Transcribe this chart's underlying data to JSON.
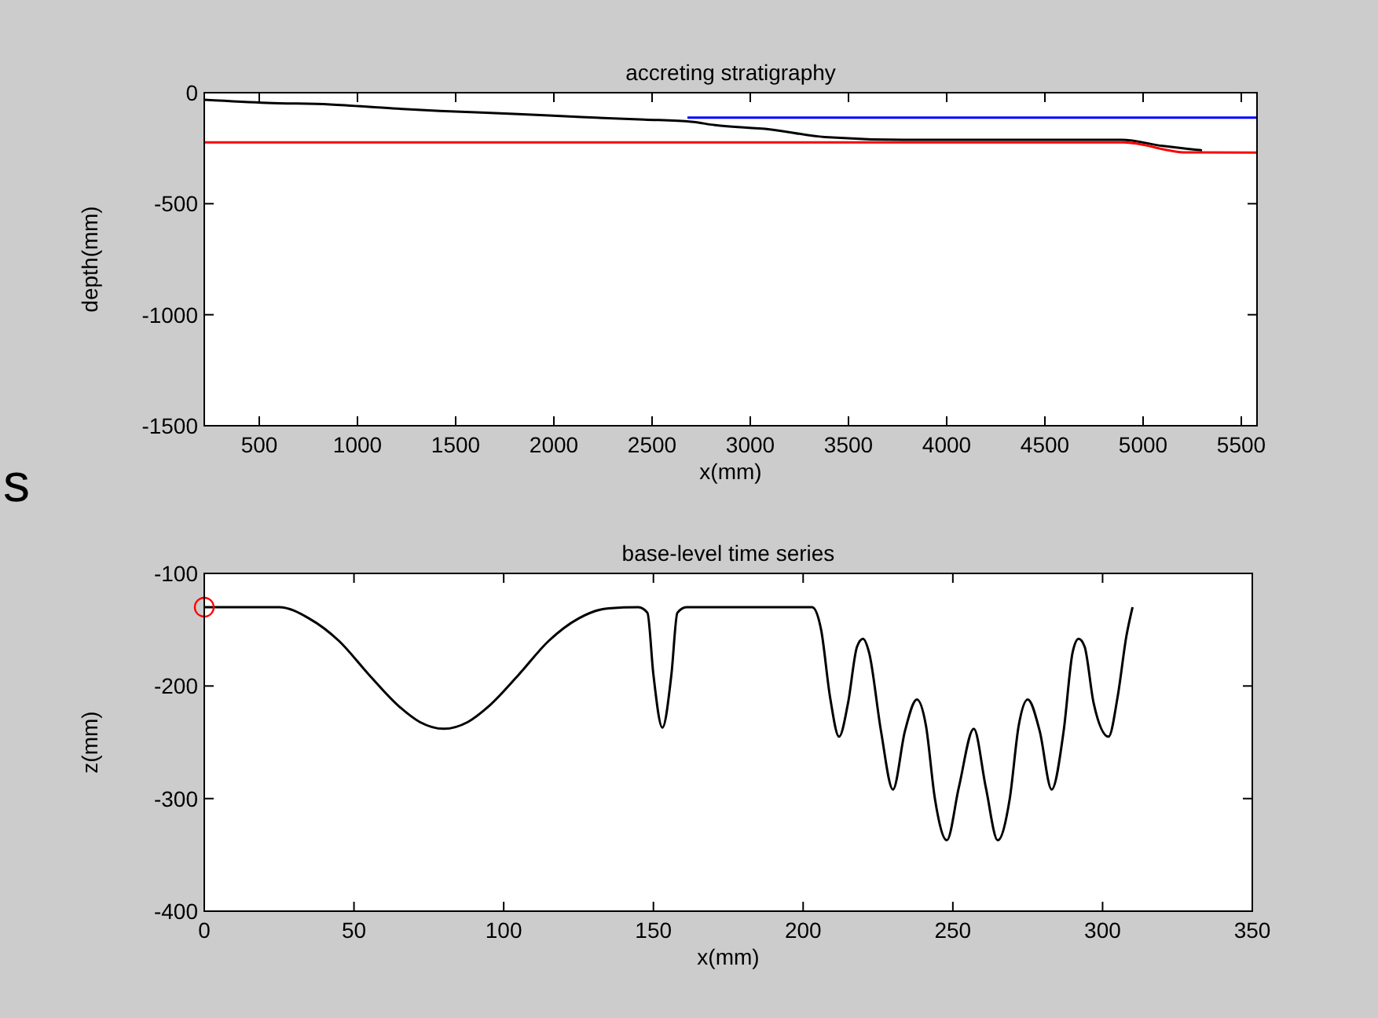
{
  "chart_data": [
    {
      "type": "line",
      "title": "accreting stratigraphy",
      "xlabel": "x(mm)",
      "ylabel": "depth(mm)",
      "xlim": [
        220,
        5580
      ],
      "ylim": [
        -1500,
        0
      ],
      "xticks": [
        500,
        1000,
        1500,
        2000,
        2500,
        3000,
        3500,
        4000,
        4500,
        5000,
        5500
      ],
      "yticks": [
        -1500,
        -1000,
        -500,
        0
      ],
      "annotations": [
        "s"
      ],
      "series": [
        {
          "color": "#000000",
          "x": [
            220,
            540,
            860,
            1180,
            1420,
            1820,
            2140,
            2460,
            2700,
            2820,
            3100,
            3380,
            3780,
            4890,
            5100,
            5300
          ],
          "values": [
            -32,
            -46,
            -53,
            -71,
            -82,
            -96,
            -110,
            -121,
            -131,
            -146,
            -165,
            -200,
            -212,
            -212,
            -240,
            -260
          ]
        },
        {
          "color": "#0000ff",
          "x": [
            2680,
            5580
          ],
          "values": [
            -112,
            -112
          ]
        },
        {
          "color": "#ff0000",
          "x": [
            220,
            4900,
            5220,
            5580
          ],
          "values": [
            -224,
            -224,
            -269,
            -270
          ]
        }
      ]
    },
    {
      "type": "line",
      "title": "base-level time series",
      "xlabel": "x(mm)",
      "ylabel": "z(mm)",
      "xlim": [
        0,
        350
      ],
      "ylim": [
        -400,
        -100
      ],
      "xticks": [
        0,
        50,
        100,
        150,
        200,
        250,
        300,
        350
      ],
      "yticks": [
        -400,
        -300,
        -200,
        -100
      ],
      "series": [
        {
          "color": "#000000",
          "x": [
            0,
            25,
            35,
            45,
            55,
            65,
            72,
            80,
            88,
            95,
            105,
            115,
            125,
            135,
            145,
            148,
            150,
            153,
            156,
            158,
            161,
            203,
            206,
            209,
            212,
            215,
            218,
            220,
            222,
            226,
            230,
            234,
            238,
            241,
            244,
            248,
            252,
            257,
            261,
            265,
            269,
            272,
            275,
            279,
            283,
            287,
            290,
            292,
            294,
            297,
            302,
            305,
            308,
            310
          ],
          "values": [
            -130,
            -130,
            -140,
            -160,
            -190,
            -218,
            -232,
            -238,
            -232,
            -218,
            -190,
            -160,
            -140,
            -131,
            -130,
            -135,
            -190,
            -237,
            -190,
            -135,
            -130,
            -130,
            -150,
            -210,
            -245,
            -215,
            -165,
            -158,
            -170,
            -240,
            -292,
            -240,
            -212,
            -235,
            -300,
            -337,
            -290,
            -238,
            -290,
            -337,
            -300,
            -235,
            -212,
            -240,
            -292,
            -240,
            -170,
            -158,
            -165,
            -215,
            -245,
            -210,
            -155,
            -130
          ]
        },
        {
          "type": "scatter",
          "marker": "circle",
          "color": "#ff0000",
          "x": [
            0
          ],
          "values": [
            -130
          ]
        }
      ]
    }
  ]
}
